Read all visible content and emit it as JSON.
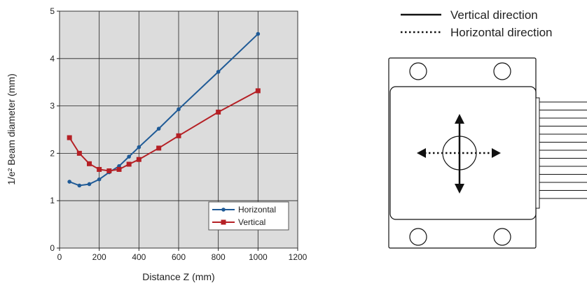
{
  "chart_data": {
    "type": "line",
    "title": "",
    "xlabel": "Distance Z (mm)",
    "ylabel": "1/e² Beam diameter (mm)",
    "xlim": [
      0,
      1200
    ],
    "ylim": [
      0,
      5
    ],
    "xticks": [
      0,
      200,
      400,
      600,
      800,
      1000,
      1200
    ],
    "yticks": [
      0,
      1,
      2,
      3,
      4,
      5
    ],
    "grid": true,
    "legend_position": "bottom-right",
    "series": [
      {
        "name": "Horizontal",
        "color": "#1f5a96",
        "marker": "circle",
        "x": [
          50,
          100,
          150,
          200,
          250,
          300,
          350,
          400,
          500,
          600,
          800,
          1000
        ],
        "y": [
          1.4,
          1.32,
          1.35,
          1.45,
          1.6,
          1.73,
          1.93,
          2.13,
          2.52,
          2.93,
          3.72,
          4.52
        ]
      },
      {
        "name": "Vertical",
        "color": "#b52025",
        "marker": "square",
        "x": [
          50,
          100,
          150,
          200,
          250,
          300,
          350,
          400,
          500,
          600,
          800,
          1000
        ],
        "y": [
          2.33,
          2.0,
          1.78,
          1.66,
          1.63,
          1.66,
          1.77,
          1.87,
          2.11,
          2.37,
          2.87,
          3.32
        ]
      }
    ]
  },
  "diagram": {
    "legend": {
      "solid_label": "Vertical direction",
      "dotted_label": "Horizontal direction"
    }
  }
}
